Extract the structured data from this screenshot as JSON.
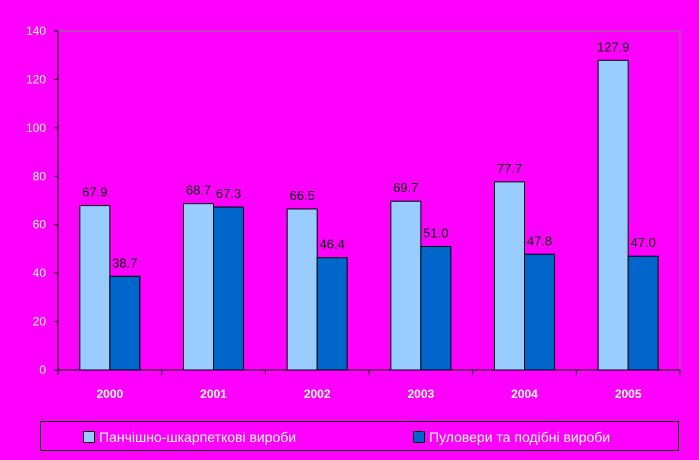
{
  "chart_data": {
    "type": "bar",
    "categories": [
      "2000",
      "2001",
      "2002",
      "2003",
      "2004",
      "2005"
    ],
    "series": [
      {
        "name": "Панчішно-шкарпеткові вироби",
        "values": [
          67.9,
          68.7,
          66.5,
          69.7,
          77.7,
          127.9
        ],
        "color": "#99ccff"
      },
      {
        "name": "Пуловери та подібні вироби",
        "values": [
          38.7,
          67.3,
          46.4,
          51.0,
          47.8,
          47.0
        ],
        "color": "#0066cc"
      }
    ],
    "ylim": [
      0,
      140
    ],
    "yticks": [
      0,
      20,
      40,
      60,
      80,
      100,
      120,
      140
    ],
    "data_labels": true,
    "legend": "bottom",
    "grid": false,
    "background_color": "#ff00ff"
  }
}
